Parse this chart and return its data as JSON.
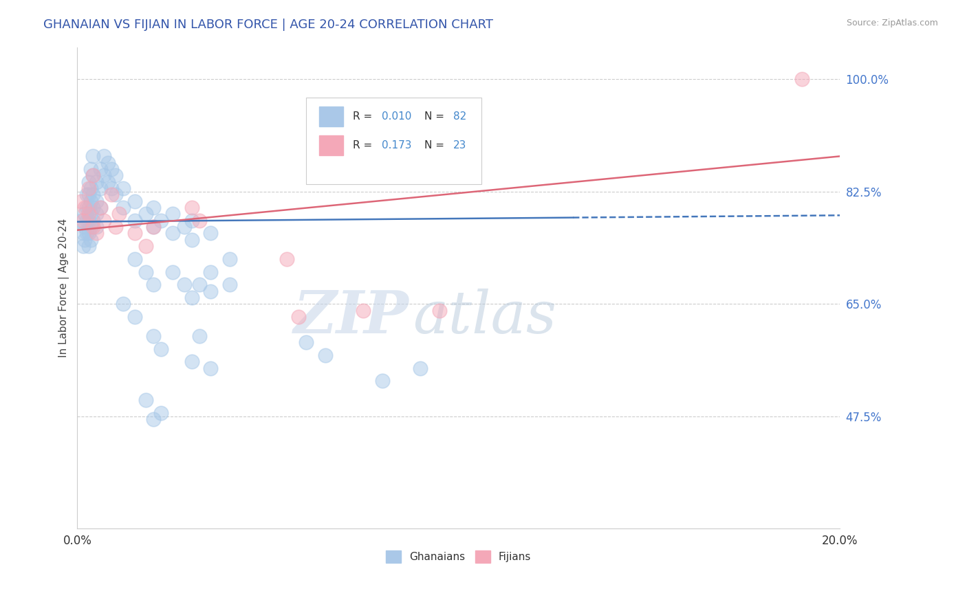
{
  "title": "GHANAIAN VS FIJIAN IN LABOR FORCE | AGE 20-24 CORRELATION CHART",
  "source": "Source: ZipAtlas.com",
  "ylabel": "In Labor Force | Age 20-24",
  "right_yticks": [
    47.5,
    65.0,
    82.5,
    100.0
  ],
  "xlim": [
    0.0,
    20.0
  ],
  "ylim": [
    30.0,
    105.0
  ],
  "blue_scatter_color": "#a8c8e8",
  "pink_scatter_color": "#f4a8b8",
  "blue_line_color": "#4477bb",
  "pink_line_color": "#dd6677",
  "gridline_color": "#cccccc",
  "title_color": "#3355aa",
  "tick_color": "#4477cc",
  "watermark_zip_color": "#ccd8ee",
  "watermark_atlas_color": "#aabbd8",
  "blue_trend_x": [
    0.0,
    20.0
  ],
  "blue_trend_y": [
    77.8,
    78.8
  ],
  "blue_trend_solid_end": 13.0,
  "pink_trend_x": [
    0.0,
    20.0
  ],
  "pink_trend_y": [
    76.5,
    88.0
  ],
  "ghanaian_points": [
    [
      0.1,
      78
    ],
    [
      0.15,
      76
    ],
    [
      0.15,
      74
    ],
    [
      0.2,
      79
    ],
    [
      0.2,
      77
    ],
    [
      0.2,
      75
    ],
    [
      0.25,
      82
    ],
    [
      0.25,
      80
    ],
    [
      0.25,
      78
    ],
    [
      0.25,
      76
    ],
    [
      0.3,
      84
    ],
    [
      0.3,
      82
    ],
    [
      0.3,
      80
    ],
    [
      0.3,
      78
    ],
    [
      0.3,
      76
    ],
    [
      0.3,
      74
    ],
    [
      0.35,
      86
    ],
    [
      0.35,
      83
    ],
    [
      0.35,
      81
    ],
    [
      0.35,
      79
    ],
    [
      0.35,
      77
    ],
    [
      0.35,
      75
    ],
    [
      0.4,
      88
    ],
    [
      0.4,
      85
    ],
    [
      0.4,
      82
    ],
    [
      0.4,
      80
    ],
    [
      0.4,
      78
    ],
    [
      0.5,
      84
    ],
    [
      0.5,
      81
    ],
    [
      0.5,
      79
    ],
    [
      0.5,
      77
    ],
    [
      0.6,
      86
    ],
    [
      0.6,
      83
    ],
    [
      0.6,
      80
    ],
    [
      0.7,
      88
    ],
    [
      0.7,
      85
    ],
    [
      0.8,
      87
    ],
    [
      0.8,
      84
    ],
    [
      0.9,
      86
    ],
    [
      0.9,
      83
    ],
    [
      1.0,
      85
    ],
    [
      1.0,
      82
    ],
    [
      1.2,
      83
    ],
    [
      1.2,
      80
    ],
    [
      1.5,
      81
    ],
    [
      1.5,
      78
    ],
    [
      1.8,
      79
    ],
    [
      2.0,
      80
    ],
    [
      2.0,
      77
    ],
    [
      2.2,
      78
    ],
    [
      2.5,
      79
    ],
    [
      2.5,
      76
    ],
    [
      2.8,
      77
    ],
    [
      3.0,
      78
    ],
    [
      3.0,
      75
    ],
    [
      3.5,
      76
    ],
    [
      1.5,
      72
    ],
    [
      1.8,
      70
    ],
    [
      2.0,
      68
    ],
    [
      2.5,
      70
    ],
    [
      2.8,
      68
    ],
    [
      3.0,
      66
    ],
    [
      3.2,
      68
    ],
    [
      3.5,
      70
    ],
    [
      3.5,
      67
    ],
    [
      4.0,
      72
    ],
    [
      4.0,
      68
    ],
    [
      1.2,
      65
    ],
    [
      1.5,
      63
    ],
    [
      2.0,
      60
    ],
    [
      2.2,
      58
    ],
    [
      3.0,
      56
    ],
    [
      3.2,
      60
    ],
    [
      3.5,
      55
    ],
    [
      6.0,
      59
    ],
    [
      6.5,
      57
    ],
    [
      8.0,
      53
    ],
    [
      9.0,
      55
    ],
    [
      1.8,
      50
    ],
    [
      2.0,
      47
    ],
    [
      2.2,
      48
    ]
  ],
  "fijian_points": [
    [
      0.1,
      81
    ],
    [
      0.15,
      78
    ],
    [
      0.2,
      80
    ],
    [
      0.3,
      83
    ],
    [
      0.3,
      79
    ],
    [
      0.4,
      85
    ],
    [
      0.4,
      77
    ],
    [
      0.5,
      76
    ],
    [
      0.6,
      80
    ],
    [
      0.7,
      78
    ],
    [
      0.9,
      82
    ],
    [
      1.0,
      77
    ],
    [
      1.1,
      79
    ],
    [
      1.5,
      76
    ],
    [
      1.8,
      74
    ],
    [
      2.0,
      77
    ],
    [
      3.0,
      80
    ],
    [
      3.2,
      78
    ],
    [
      5.5,
      72
    ],
    [
      5.8,
      63
    ],
    [
      7.5,
      64
    ],
    [
      9.5,
      64
    ],
    [
      19.0,
      100
    ]
  ]
}
